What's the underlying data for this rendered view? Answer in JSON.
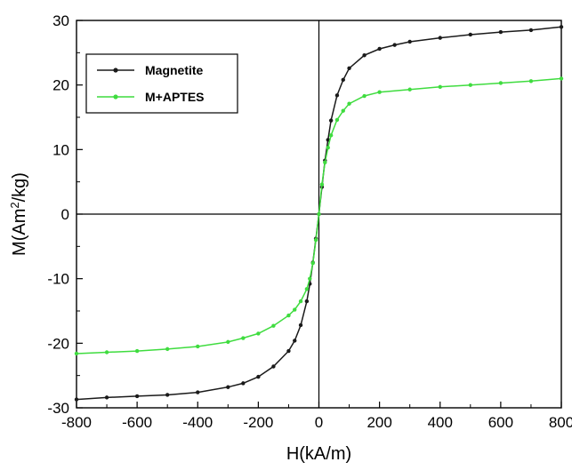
{
  "chart_data": {
    "type": "line",
    "title": "",
    "xlabel": "H(kA/m)",
    "ylabel": "M(Am²/kg)",
    "ylabel_parts": [
      "M(Am",
      "2",
      "/kg)"
    ],
    "xlim": [
      -800,
      800
    ],
    "ylim": [
      -30,
      30
    ],
    "xticks": [
      -800,
      -600,
      -400,
      -200,
      0,
      200,
      400,
      600,
      800
    ],
    "yticks": [
      -30,
      -20,
      -10,
      0,
      10,
      20,
      30
    ],
    "grid": false,
    "legend_position": "top-left",
    "series": [
      {
        "name": "Magnetite",
        "color": "#1a1a1a",
        "x": [
          -800,
          -700,
          -600,
          -500,
          -400,
          -300,
          -250,
          -200,
          -150,
          -100,
          -80,
          -60,
          -40,
          -30,
          -20,
          -10,
          0,
          10,
          20,
          30,
          40,
          60,
          80,
          100,
          150,
          200,
          250,
          300,
          400,
          500,
          600,
          700,
          800
        ],
        "y": [
          -28.7,
          -28.4,
          -28.2,
          -28.0,
          -27.6,
          -26.8,
          -26.2,
          -25.2,
          -23.6,
          -21.2,
          -19.6,
          -17.2,
          -13.5,
          -10.8,
          -7.5,
          -3.8,
          0,
          4.2,
          8.3,
          11.5,
          14.5,
          18.4,
          20.8,
          22.6,
          24.6,
          25.6,
          26.2,
          26.7,
          27.3,
          27.8,
          28.2,
          28.5,
          29.0
        ]
      },
      {
        "name": "M+APTES",
        "color": "#3fdc3f",
        "x": [
          -800,
          -700,
          -600,
          -500,
          -400,
          -300,
          -250,
          -200,
          -150,
          -100,
          -80,
          -60,
          -40,
          -30,
          -20,
          -10,
          0,
          10,
          20,
          30,
          40,
          60,
          80,
          100,
          150,
          200,
          300,
          400,
          500,
          600,
          700,
          800
        ],
        "y": [
          -21.6,
          -21.4,
          -21.2,
          -20.9,
          -20.5,
          -19.8,
          -19.2,
          -18.5,
          -17.3,
          -15.7,
          -14.8,
          -13.5,
          -11.6,
          -10.0,
          -7.6,
          -4.0,
          0,
          4.6,
          8.0,
          10.3,
          12.2,
          14.6,
          16.0,
          17.1,
          18.3,
          18.9,
          19.3,
          19.7,
          20.0,
          20.3,
          20.6,
          21.0
        ]
      }
    ]
  }
}
